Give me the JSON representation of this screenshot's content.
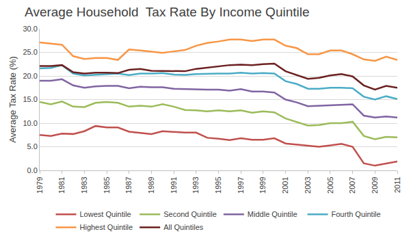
{
  "chart_data": {
    "type": "line",
    "title": "Average Household  Tax Rate By Income Quintile",
    "y_label": "Average Tax Rate (%)",
    "x": [
      1979,
      1980,
      1981,
      1982,
      1983,
      1984,
      1985,
      1986,
      1987,
      1988,
      1989,
      1990,
      1991,
      1992,
      1993,
      1994,
      1995,
      1996,
      1997,
      1998,
      1999,
      2000,
      2001,
      2002,
      2003,
      2004,
      2005,
      2006,
      2007,
      2008,
      2009,
      2010,
      2011
    ],
    "xlim": [
      1979,
      2011
    ],
    "xticks": [
      1979,
      1981,
      1983,
      1985,
      1987,
      1989,
      1991,
      1993,
      1995,
      1997,
      1999,
      2001,
      2003,
      2005,
      2007,
      2009,
      2011
    ],
    "ylim": [
      0,
      30
    ],
    "yticks": [
      {
        "value": 0,
        "label": "0.0"
      },
      {
        "value": 5,
        "label": "5.0"
      },
      {
        "value": 10,
        "label": "10.0"
      },
      {
        "value": 15,
        "label": "15.0"
      },
      {
        "value": 20,
        "label": "20.0"
      },
      {
        "value": 25,
        "label": "25.0"
      },
      {
        "value": 30,
        "label": "30.0"
      }
    ],
    "grid": true,
    "legend": "bottom",
    "series": [
      {
        "name": "Lowest Quintile",
        "color": "#c0504d",
        "values": [
          7.5,
          7.3,
          7.8,
          7.7,
          8.3,
          9.4,
          9.1,
          9.1,
          8.2,
          7.9,
          7.7,
          8.3,
          8.1,
          8.0,
          8.0,
          6.9,
          6.7,
          6.4,
          6.8,
          6.5,
          6.5,
          6.8,
          5.7,
          5.5,
          5.2,
          5.0,
          5.3,
          5.6,
          5.0,
          1.5,
          1.0,
          1.5,
          1.9
        ]
      },
      {
        "name": "Second Quintile",
        "color": "#9bbb59",
        "values": [
          14.5,
          14.0,
          14.6,
          13.5,
          13.4,
          14.3,
          14.5,
          14.3,
          13.5,
          13.7,
          13.5,
          14.0,
          13.5,
          12.8,
          12.7,
          12.5,
          12.7,
          12.5,
          12.7,
          12.2,
          12.5,
          12.3,
          11.0,
          10.3,
          9.5,
          9.6,
          10.0,
          10.0,
          10.3,
          7.3,
          6.6,
          7.1,
          7.0
        ]
      },
      {
        "name": "Middle Quintile",
        "color": "#8064a2",
        "values": [
          19.0,
          19.0,
          19.3,
          18.0,
          17.5,
          17.8,
          17.9,
          17.9,
          17.4,
          17.7,
          17.6,
          17.6,
          17.3,
          17.2,
          17.2,
          17.1,
          17.1,
          16.9,
          17.2,
          16.7,
          16.7,
          16.5,
          15.0,
          14.4,
          13.6,
          13.7,
          13.8,
          13.9,
          14.0,
          11.6,
          11.2,
          11.4,
          11.2
        ]
      },
      {
        "name": "Fourth Quintile",
        "color": "#4bacc6",
        "values": [
          21.6,
          21.7,
          22.3,
          20.5,
          20.1,
          20.2,
          20.3,
          20.5,
          20.2,
          20.5,
          20.5,
          20.6,
          20.3,
          20.2,
          20.4,
          20.5,
          20.5,
          20.5,
          20.7,
          20.5,
          20.6,
          20.5,
          18.9,
          18.3,
          17.3,
          17.3,
          17.5,
          17.5,
          17.4,
          15.6,
          15.0,
          15.7,
          15.1
        ]
      },
      {
        "name": "Highest Quintile",
        "color": "#f79646",
        "values": [
          27.1,
          26.9,
          26.6,
          24.2,
          23.6,
          23.8,
          23.8,
          23.4,
          25.6,
          25.4,
          25.1,
          24.9,
          25.2,
          25.5,
          26.4,
          27.0,
          27.3,
          27.7,
          27.7,
          27.4,
          27.7,
          27.7,
          26.4,
          25.9,
          24.6,
          24.6,
          25.4,
          25.4,
          24.6,
          23.5,
          23.2,
          24.1,
          23.4
        ]
      },
      {
        "name": "All Quintiles",
        "color": "#6b2020",
        "values": [
          22.1,
          22.1,
          22.3,
          20.8,
          20.5,
          20.7,
          20.7,
          20.6,
          21.3,
          21.5,
          21.1,
          21.1,
          21.0,
          21.0,
          21.5,
          21.8,
          22.0,
          22.3,
          22.4,
          22.3,
          22.5,
          22.6,
          21.0,
          20.2,
          19.4,
          19.6,
          20.1,
          20.4,
          19.9,
          18.0,
          17.1,
          17.9,
          17.5
        ]
      }
    ]
  }
}
